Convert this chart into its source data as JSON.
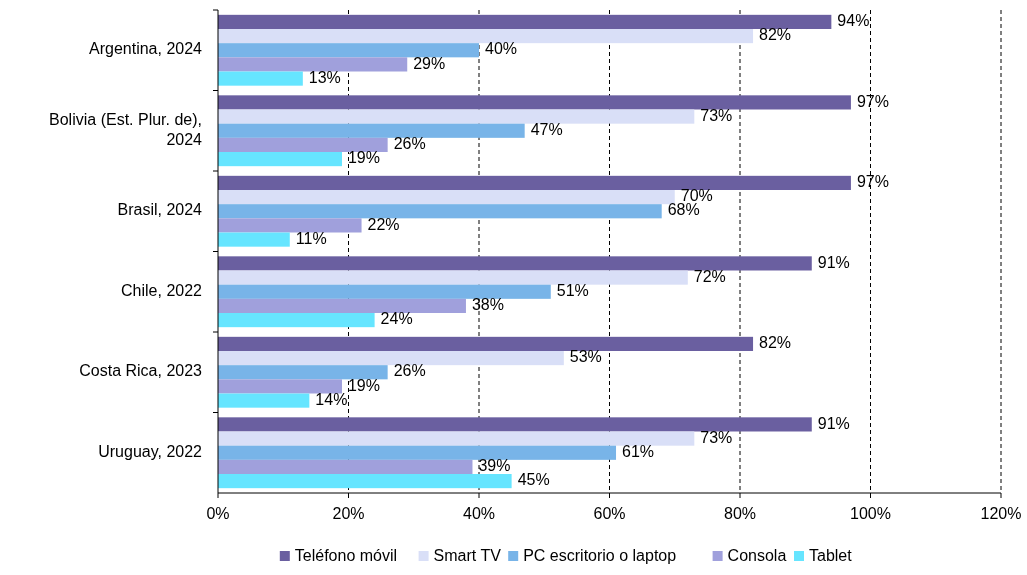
{
  "chart_data": {
    "type": "bar",
    "orientation": "horizontal",
    "categories": [
      "Argentina, 2024",
      "Bolivia (Est. Plur. de), 2024",
      "Brasil, 2024",
      "Chile, 2022",
      "Costa Rica, 2023",
      "Uruguay, 2022"
    ],
    "series": [
      {
        "name": "Teléfono móvil",
        "color": "#6a5fa0",
        "values": [
          94,
          97,
          97,
          91,
          82,
          91
        ],
        "value_labels": [
          "94%",
          "97%",
          "97%",
          "91%",
          "82%",
          "91%"
        ]
      },
      {
        "name": "Smart TV",
        "color": "#d9dff7",
        "values": [
          82,
          73,
          70,
          72,
          53,
          73
        ],
        "value_labels": [
          "82%",
          "73%",
          "70%",
          "72%",
          "53%",
          "73%"
        ]
      },
      {
        "name": "PC escritorio o laptop",
        "color": "#78b4e8",
        "values": [
          40,
          47,
          68,
          51,
          26,
          61
        ],
        "value_labels": [
          "40%",
          "47%",
          "68%",
          "51%",
          "26%",
          "61%"
        ]
      },
      {
        "name": "Consola",
        "color": "#a0a0dc",
        "values": [
          29,
          26,
          22,
          38,
          19,
          39
        ],
        "value_labels": [
          "29%",
          "26%",
          "22%",
          "38%",
          "19%",
          "39%"
        ]
      },
      {
        "name": "Tablet",
        "color": "#66e5ff",
        "values": [
          13,
          19,
          11,
          24,
          14,
          45
        ],
        "value_labels": [
          "13%",
          "19%",
          "11%",
          "24%",
          "14%",
          "45%"
        ]
      }
    ],
    "xlim": [
      0,
      120
    ],
    "xticks": [
      {
        "value": 0,
        "label": "0%"
      },
      {
        "value": 20,
        "label": "20%"
      },
      {
        "value": 40,
        "label": "40%"
      },
      {
        "value": 60,
        "label": "60%"
      },
      {
        "value": 80,
        "label": "80%"
      },
      {
        "value": 100,
        "label": "100%"
      },
      {
        "value": 120,
        "label": "120%"
      }
    ],
    "grid": "x",
    "legend": "bottom"
  }
}
